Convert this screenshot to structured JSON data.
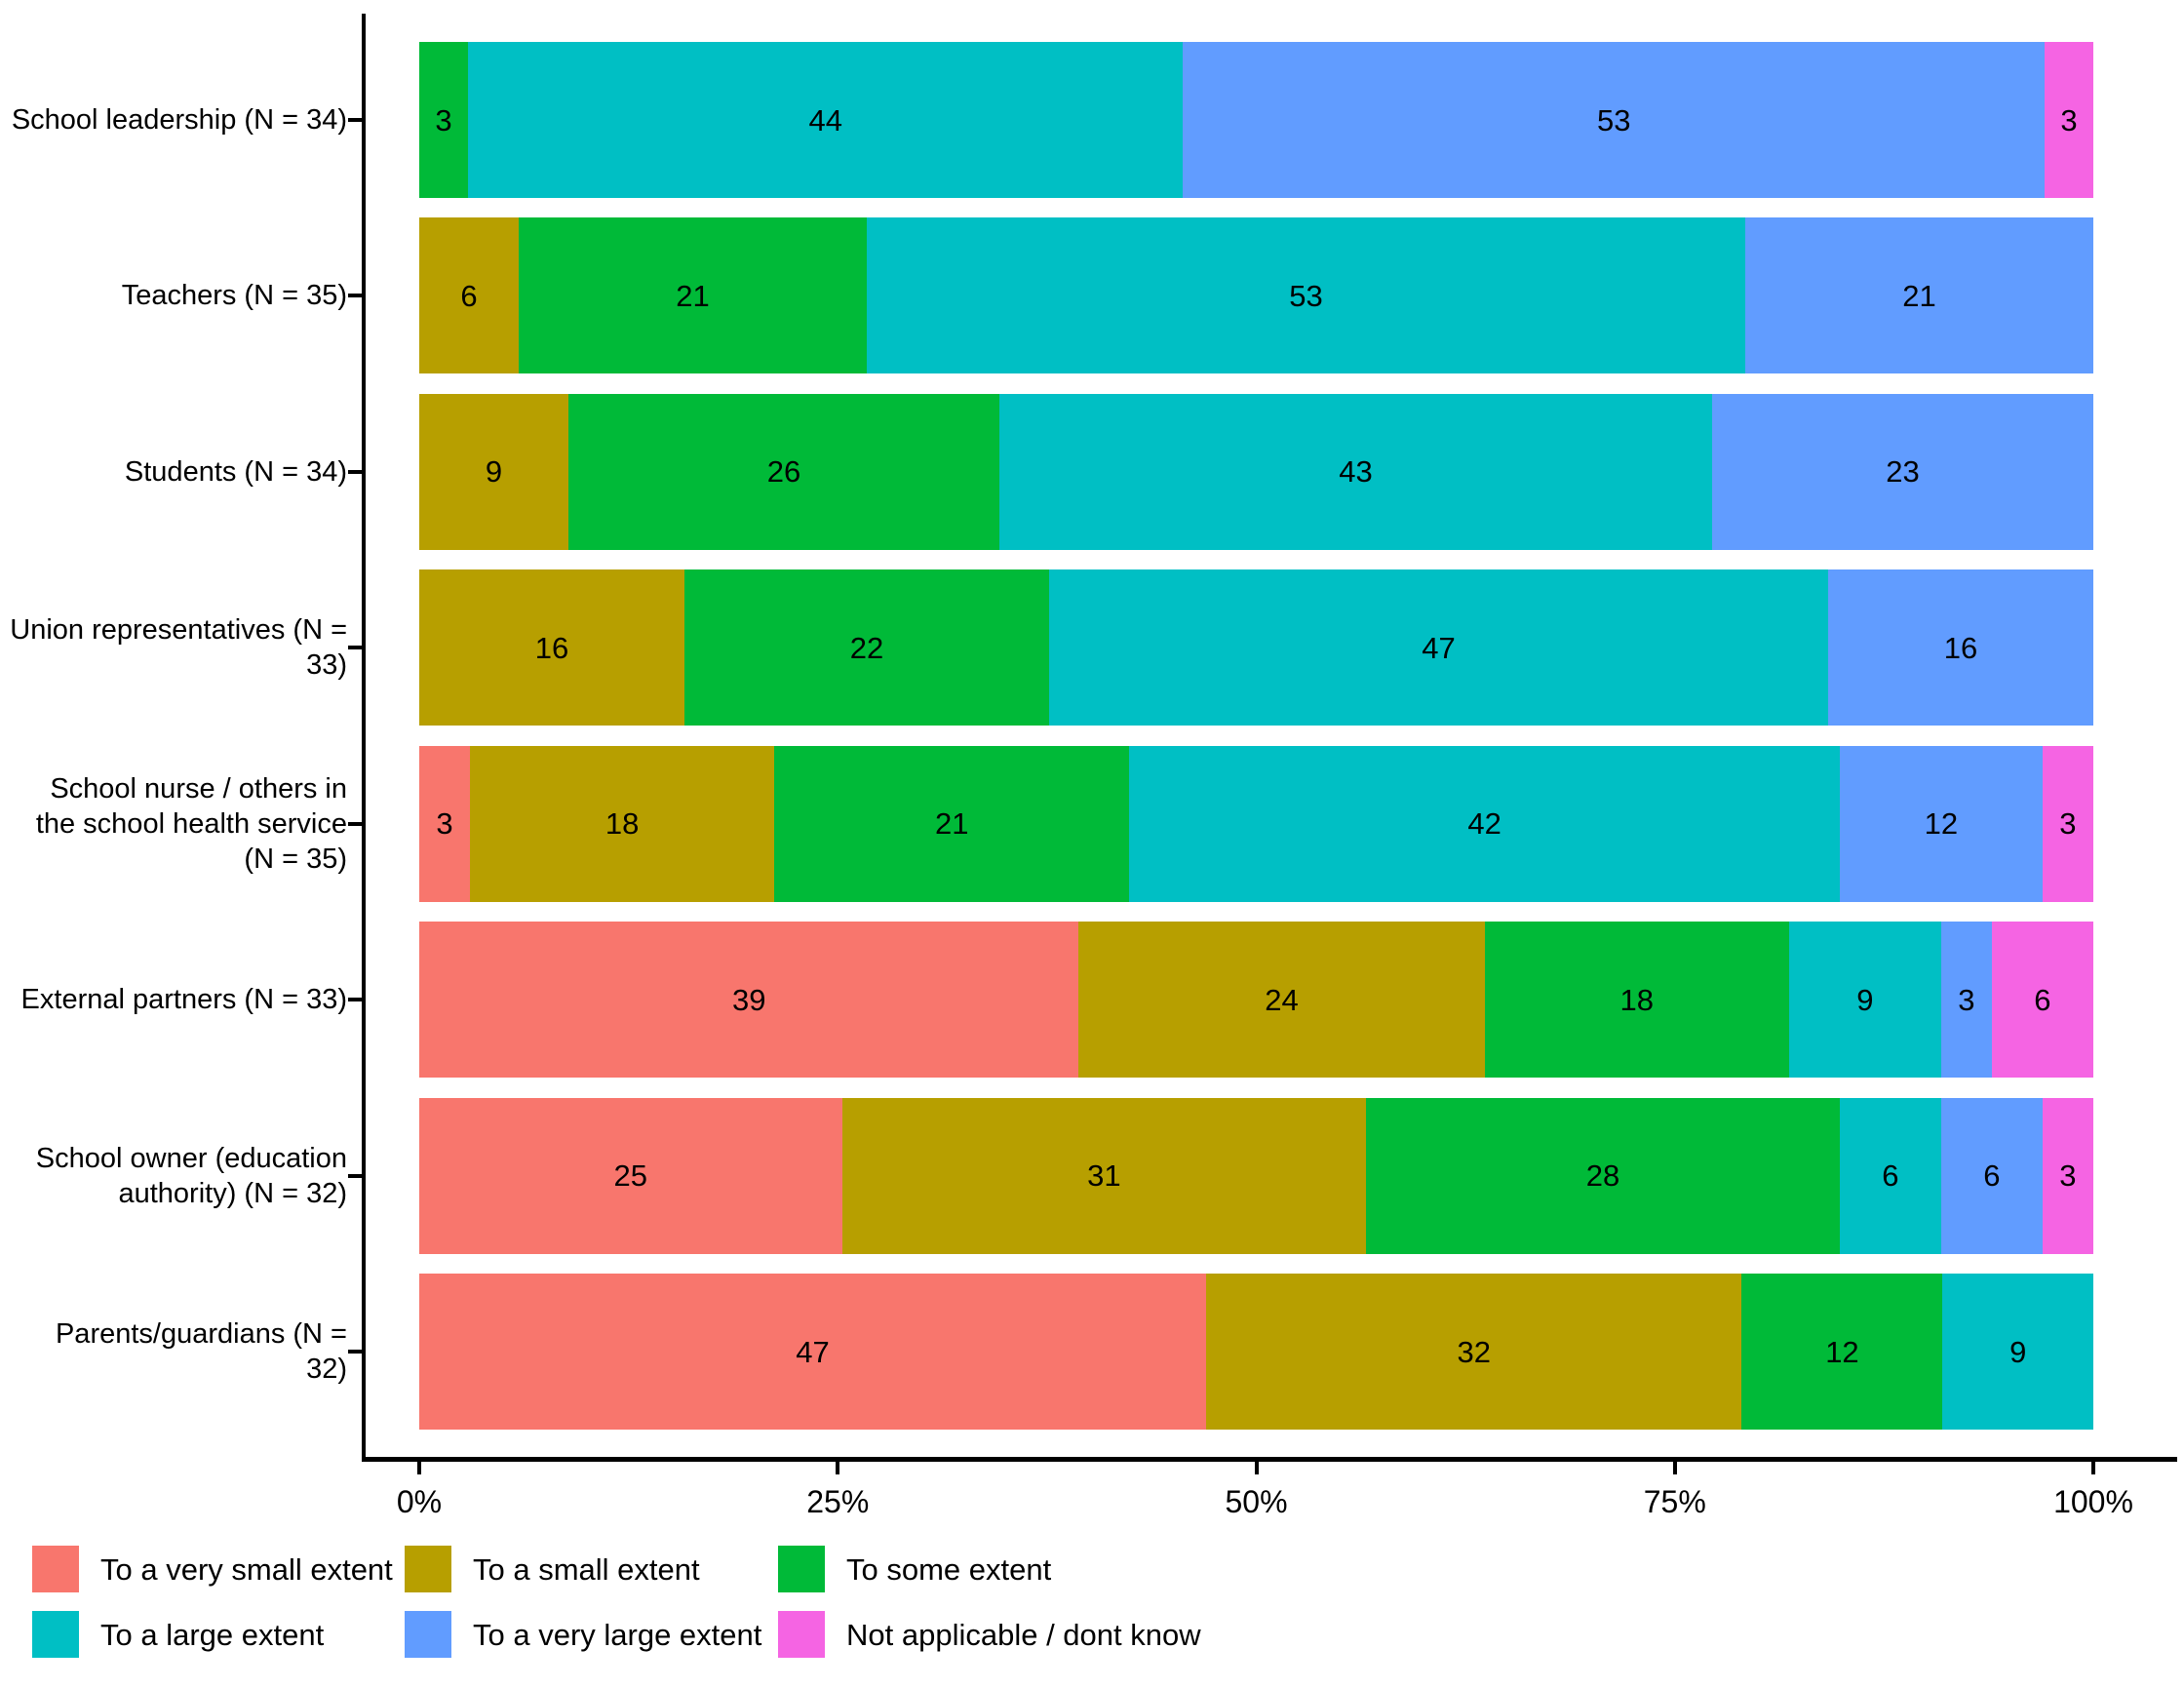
{
  "chart_data": {
    "type": "bar",
    "orientation": "horizontal",
    "stacked": true,
    "grid": false,
    "legend_position": "bottom",
    "xlim": [
      0,
      100
    ],
    "categories": [
      "School leadership (N = 34)",
      "Teachers (N = 35)",
      "Students (N = 34)",
      "Union representatives (N = 33)",
      "School nurse / others in the school health service (N = 35)",
      "External partners (N = 33)",
      "School owner (education authority) (N = 32)",
      "Parents/guardians (N = 32)"
    ],
    "series": [
      {
        "name": "To a very small extent",
        "color": "#F8766D",
        "values": [
          0,
          0,
          0,
          0,
          3,
          39,
          25,
          47
        ]
      },
      {
        "name": "To a small extent",
        "color": "#B79F00",
        "values": [
          0,
          6,
          9,
          16,
          18,
          24,
          31,
          32
        ]
      },
      {
        "name": "To some extent",
        "color": "#00BA38",
        "values": [
          3,
          21,
          26,
          22,
          21,
          18,
          28,
          12
        ]
      },
      {
        "name": "To a large extent",
        "color": "#00BFC4",
        "values": [
          44,
          53,
          43,
          47,
          42,
          9,
          6,
          9
        ]
      },
      {
        "name": "To a very large extent",
        "color": "#619CFF",
        "values": [
          53,
          21,
          23,
          16,
          12,
          3,
          6,
          0
        ]
      },
      {
        "name": "Not applicable / dont know",
        "color": "#F564E3",
        "values": [
          3,
          0,
          0,
          0,
          3,
          6,
          3,
          0
        ]
      }
    ],
    "x_ticks": [
      {
        "label": "0%",
        "value": 0
      },
      {
        "label": "25%",
        "value": 25
      },
      {
        "label": "50%",
        "value": 50
      },
      {
        "label": "75%",
        "value": 75
      },
      {
        "label": "100%",
        "value": 100
      }
    ],
    "text_color": "#000000",
    "axis_color": "#000000"
  }
}
